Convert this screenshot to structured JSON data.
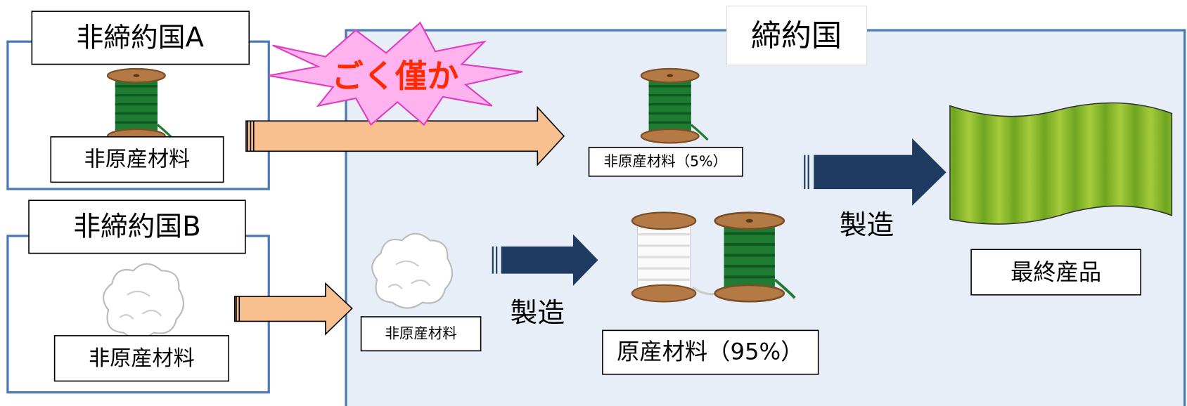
{
  "nonparty_a": {
    "title": "非締約国A",
    "material": "非原産材料"
  },
  "nonparty_b": {
    "title": "非締約国B",
    "material": "非原産材料"
  },
  "party": {
    "title": "締約国",
    "thread_label": "非原産材料（5%）",
    "cotton_label": "非原産材料",
    "process_1": "製造",
    "process_2": "製造",
    "originating_label": "原産材料（95%）",
    "final_label": "最終産品"
  },
  "callout": "ごく僅か"
}
